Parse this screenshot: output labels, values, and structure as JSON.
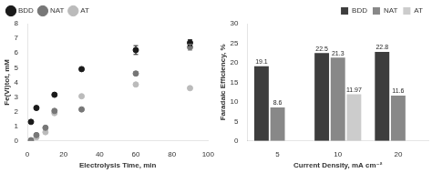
{
  "chart_data": [
    {
      "type": "scatter",
      "xlabel": "Electrolysis Time, min",
      "ylabel": "Fe(VI)tot, mM",
      "series": [
        {
          "name": "BDD",
          "color": "#1a1a1a",
          "marker": "circle",
          "x": [
            2,
            5,
            15,
            30,
            60,
            90
          ],
          "values": [
            1.3,
            2.25,
            3.15,
            4.9,
            6.2,
            6.7
          ],
          "yerr": [
            null,
            null,
            null,
            null,
            0.3,
            0.2
          ]
        },
        {
          "name": "NAT",
          "color": "#777777",
          "marker": "circle",
          "x": [
            2,
            5,
            10,
            15,
            30,
            60,
            90
          ],
          "values": [
            0.05,
            0.4,
            0.9,
            2.05,
            2.15,
            4.6,
            6.4
          ],
          "yerr": [
            null,
            null,
            null,
            null,
            null,
            0.12,
            0.2
          ]
        },
        {
          "name": "AT",
          "color": "#bbbbbb",
          "marker": "circle",
          "x": [
            2,
            5,
            10,
            15,
            30,
            60,
            90
          ],
          "values": [
            0.02,
            0.25,
            0.6,
            1.9,
            3.05,
            3.85,
            3.6
          ]
        }
      ],
      "xlim": [
        0,
        100
      ],
      "xticks": [
        0,
        20,
        40,
        60,
        80,
        100
      ],
      "ylim": [
        0,
        8
      ],
      "yticks": [
        0,
        1,
        2,
        3,
        4,
        5,
        6,
        7,
        8
      ],
      "grid": false,
      "legend": "upper left"
    },
    {
      "type": "bar",
      "xlabel": "Current Density, mA cm⁻²",
      "ylabel": "Faradaic Efficiency, %",
      "categories": [
        "5",
        "10",
        "20"
      ],
      "series": [
        {
          "name": "BDD",
          "color": "#3d3d3d",
          "values": [
            19.1,
            22.5,
            22.8
          ]
        },
        {
          "name": "NAT",
          "color": "#888888",
          "values": [
            8.6,
            21.3,
            11.6
          ]
        },
        {
          "name": "AT",
          "color": "#cccccc",
          "values": [
            null,
            11.97,
            null
          ]
        }
      ],
      "ylim": [
        0,
        30
      ],
      "yticks": [
        0,
        5,
        10,
        15,
        20,
        25,
        30
      ],
      "data_labels": true,
      "grid": false,
      "legend": "upper right"
    }
  ]
}
